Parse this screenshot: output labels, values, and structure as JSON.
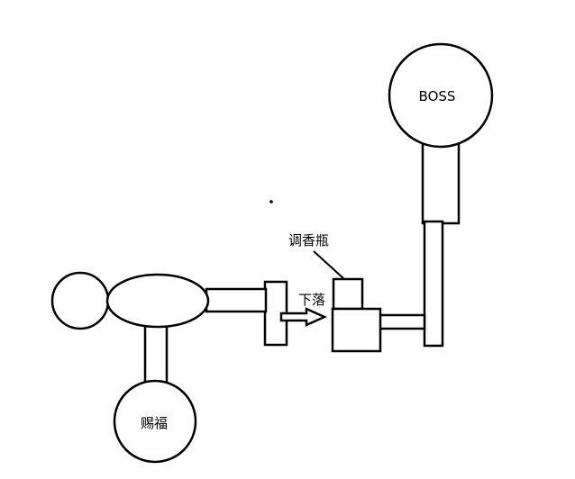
{
  "labels": {
    "boss": "BOSS",
    "blessing": "赐福",
    "bottle": "调香瓶",
    "drop": "下落"
  }
}
